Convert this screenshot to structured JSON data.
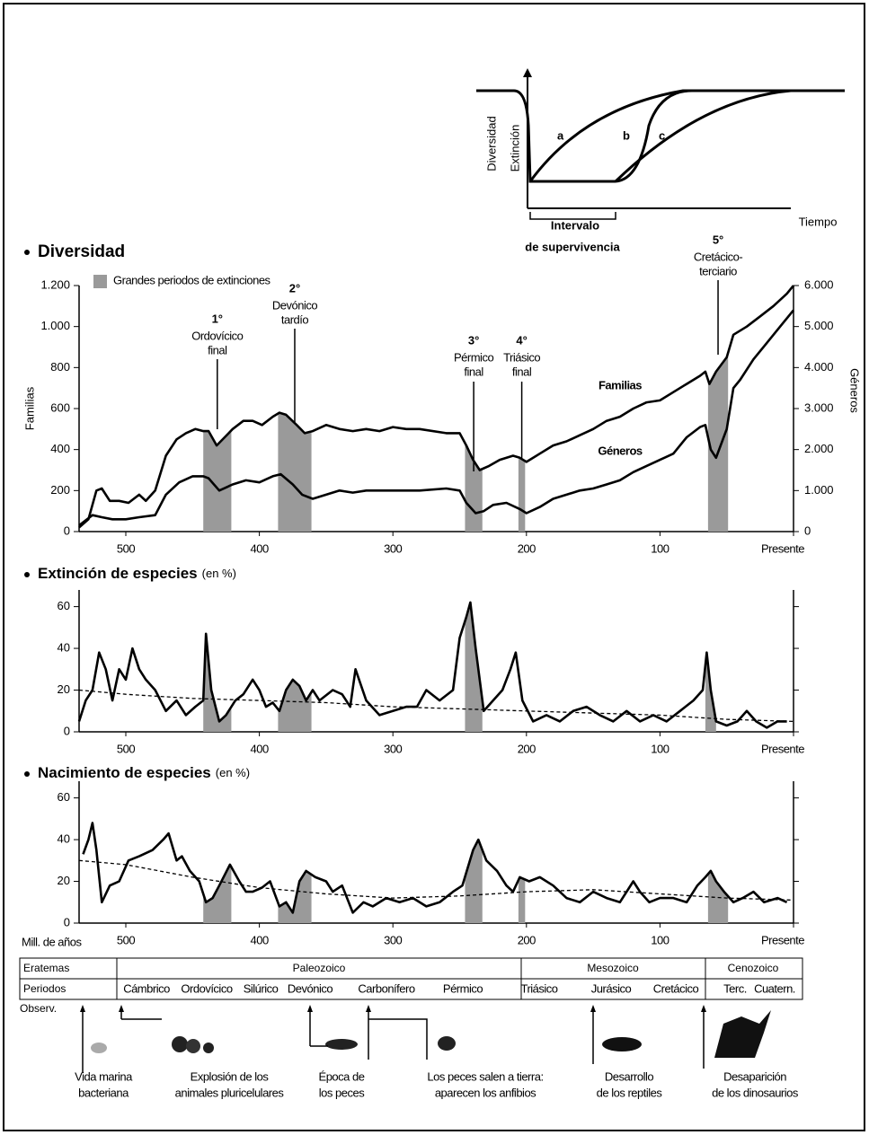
{
  "inset": {
    "y_label": "Diversidad",
    "extinction_label": "Extinción",
    "curve_labels": [
      "a",
      "b",
      "c"
    ],
    "x_label": "Tiempo",
    "interval_lines": [
      "Intervalo",
      "de supervivencia"
    ]
  },
  "chart_data": [
    {
      "type": "line",
      "title": "Diversidad",
      "y_label": "Familias",
      "y2_label": "Géneros",
      "legend_label": "Grandes periodos de extinciones",
      "shade_color": "#9a9a9a",
      "xlim": [
        535,
        0
      ],
      "xticks": [
        500,
        400,
        300,
        200,
        100,
        {
          "value": 0,
          "label": "Presente"
        }
      ],
      "ylim": [
        0,
        1200
      ],
      "yticks": [
        0,
        200,
        400,
        600,
        800,
        {
          "value": 1000,
          "label": "1.000"
        },
        {
          "value": 1200,
          "label": "1.200"
        }
      ],
      "y2lim": [
        0,
        6000
      ],
      "y2ticks": [
        0,
        {
          "value": 1000,
          "label": "1.000"
        },
        {
          "value": 2000,
          "label": "2.000"
        },
        {
          "value": 3000,
          "label": "3.000"
        },
        {
          "value": 4000,
          "label": "4.000"
        },
        {
          "value": 5000,
          "label": "5.000"
        },
        {
          "value": 6000,
          "label": "6.000"
        }
      ],
      "shaded": [
        [
          442,
          421
        ],
        [
          386,
          361
        ],
        [
          246,
          233
        ],
        [
          206,
          201
        ],
        [
          64,
          49
        ]
      ],
      "annotations": [
        {
          "rank": "1°",
          "lines": [
            "Ordovícico",
            "final"
          ]
        },
        {
          "rank": "2°",
          "lines": [
            "Devónico",
            "tardío"
          ]
        },
        {
          "rank": "3°",
          "lines": [
            "Pérmico",
            "final"
          ]
        },
        {
          "rank": "4°",
          "lines": [
            "Triásico",
            "final"
          ]
        },
        {
          "rank": "5°",
          "lines": [
            "Cretácico-",
            "terciario"
          ]
        }
      ],
      "series": [
        {
          "name": "Familias",
          "color": "#000000",
          "x": [
            535,
            528,
            522,
            518,
            512,
            505,
            498,
            490,
            485,
            478,
            470,
            462,
            455,
            448,
            442,
            438,
            432,
            426,
            420,
            412,
            405,
            398,
            390,
            385,
            380,
            372,
            366,
            360,
            350,
            340,
            330,
            320,
            310,
            300,
            290,
            280,
            260,
            250,
            245,
            240,
            235,
            228,
            220,
            210,
            205,
            200,
            190,
            180,
            170,
            160,
            150,
            140,
            130,
            120,
            110,
            100,
            90,
            80,
            70,
            66,
            63,
            58,
            50,
            45,
            35,
            25,
            15,
            5,
            0
          ],
          "values": [
            20,
            60,
            200,
            210,
            150,
            150,
            140,
            180,
            150,
            200,
            370,
            450,
            480,
            500,
            490,
            490,
            420,
            460,
            500,
            540,
            540,
            520,
            560,
            580,
            570,
            520,
            480,
            490,
            520,
            500,
            490,
            500,
            490,
            510,
            500,
            500,
            480,
            480,
            420,
            350,
            300,
            320,
            350,
            370,
            360,
            340,
            380,
            420,
            440,
            470,
            500,
            540,
            560,
            600,
            630,
            640,
            680,
            720,
            760,
            780,
            720,
            780,
            850,
            960,
            1000,
            1050,
            1100,
            1160,
            1200
          ]
        },
        {
          "name": "Géneros",
          "color": "#000000",
          "axis": "y2",
          "x": [
            535,
            525,
            518,
            510,
            500,
            490,
            478,
            470,
            460,
            450,
            442,
            438,
            430,
            420,
            410,
            400,
            390,
            384,
            375,
            368,
            360,
            350,
            340,
            330,
            320,
            300,
            280,
            260,
            250,
            245,
            238,
            232,
            225,
            215,
            205,
            200,
            190,
            180,
            170,
            160,
            150,
            140,
            130,
            120,
            110,
            100,
            90,
            80,
            70,
            66,
            62,
            58,
            50,
            45,
            40,
            30,
            20,
            10,
            0
          ],
          "values": [
            150,
            400,
            350,
            300,
            300,
            350,
            400,
            900,
            1200,
            1350,
            1350,
            1300,
            1000,
            1150,
            1250,
            1200,
            1350,
            1400,
            1150,
            900,
            800,
            900,
            1000,
            950,
            1000,
            1000,
            1000,
            1050,
            1000,
            700,
            450,
            500,
            650,
            700,
            550,
            450,
            600,
            800,
            900,
            1000,
            1050,
            1150,
            1250,
            1450,
            1600,
            1750,
            1900,
            2300,
            2550,
            2600,
            2000,
            1800,
            2500,
            3500,
            3700,
            4200,
            4600,
            5000,
            5400
          ]
        }
      ]
    },
    {
      "type": "line",
      "title": "Extinción de especies",
      "title_note": "(en %)",
      "shade_color": "#9a9a9a",
      "xlim": [
        535,
        0
      ],
      "xticks": [
        500,
        400,
        300,
        200,
        100,
        {
          "value": 0,
          "label": "Presente"
        }
      ],
      "ylim": [
        0,
        68
      ],
      "yticks": [
        0,
        20,
        40,
        60
      ],
      "shaded": [
        [
          442,
          421
        ],
        [
          386,
          361
        ],
        [
          246,
          233
        ],
        [
          66,
          58
        ]
      ],
      "series": [
        {
          "color": "#000000",
          "x": [
            535,
            530,
            525,
            520,
            515,
            510,
            505,
            500,
            495,
            490,
            485,
            478,
            470,
            462,
            455,
            448,
            442,
            440,
            436,
            430,
            425,
            418,
            412,
            405,
            400,
            395,
            390,
            385,
            380,
            375,
            370,
            365,
            360,
            355,
            345,
            338,
            332,
            328,
            320,
            310,
            300,
            290,
            282,
            275,
            265,
            255,
            250,
            245,
            242,
            238,
            232,
            225,
            218,
            212,
            208,
            203,
            195,
            185,
            175,
            165,
            155,
            145,
            135,
            125,
            115,
            105,
            95,
            85,
            75,
            68,
            65,
            62,
            58,
            50,
            42,
            35,
            28,
            20,
            12,
            5
          ],
          "values": [
            5,
            15,
            20,
            38,
            30,
            15,
            30,
            25,
            40,
            30,
            25,
            20,
            10,
            15,
            8,
            12,
            15,
            47,
            20,
            5,
            8,
            15,
            18,
            25,
            20,
            12,
            14,
            10,
            20,
            25,
            22,
            15,
            20,
            15,
            20,
            18,
            12,
            30,
            15,
            8,
            10,
            12,
            12,
            20,
            15,
            20,
            45,
            55,
            62,
            40,
            10,
            15,
            20,
            30,
            38,
            15,
            5,
            8,
            5,
            10,
            12,
            8,
            5,
            10,
            5,
            8,
            5,
            10,
            15,
            20,
            38,
            20,
            5,
            3,
            5,
            10,
            5,
            2,
            5,
            5
          ]
        },
        {
          "color": "#000000",
          "dashed": true,
          "x": [
            535,
            500,
            450,
            400,
            350,
            300,
            250,
            200,
            150,
            100,
            50,
            0
          ],
          "values": [
            20,
            18,
            16,
            15,
            14,
            12,
            11,
            10,
            9,
            8,
            6,
            5
          ]
        }
      ]
    },
    {
      "type": "line",
      "title": "Nacimiento de especies",
      "title_note": "(en %)",
      "x_label": "Mill. de años",
      "shade_color": "#9a9a9a",
      "xlim": [
        535,
        0
      ],
      "xticks": [
        500,
        400,
        300,
        200,
        100,
        {
          "value": 0,
          "label": "Presente"
        }
      ],
      "ylim": [
        0,
        68
      ],
      "yticks": [
        0,
        20,
        40,
        60
      ],
      "shaded": [
        [
          442,
          421
        ],
        [
          386,
          361
        ],
        [
          246,
          233
        ],
        [
          206,
          201
        ],
        [
          64,
          49
        ]
      ],
      "series": [
        {
          "color": "#000000",
          "x": [
            532,
            528,
            525,
            522,
            518,
            512,
            505,
            498,
            490,
            480,
            472,
            468,
            462,
            458,
            452,
            445,
            440,
            435,
            430,
            422,
            415,
            410,
            405,
            398,
            392,
            385,
            380,
            375,
            370,
            365,
            358,
            350,
            345,
            338,
            330,
            322,
            315,
            305,
            295,
            285,
            275,
            265,
            255,
            248,
            240,
            236,
            230,
            222,
            215,
            210,
            205,
            198,
            190,
            180,
            170,
            160,
            150,
            140,
            130,
            120,
            115,
            108,
            100,
            90,
            80,
            72,
            66,
            62,
            58,
            52,
            45,
            38,
            30,
            22,
            12,
            5
          ],
          "values": [
            33,
            40,
            48,
            35,
            10,
            18,
            20,
            30,
            32,
            35,
            40,
            43,
            30,
            32,
            25,
            20,
            10,
            12,
            18,
            28,
            20,
            15,
            15,
            17,
            20,
            8,
            10,
            5,
            20,
            25,
            22,
            20,
            15,
            18,
            5,
            10,
            8,
            12,
            10,
            12,
            8,
            10,
            15,
            18,
            35,
            40,
            30,
            25,
            18,
            15,
            22,
            20,
            22,
            18,
            12,
            10,
            15,
            12,
            10,
            20,
            15,
            10,
            12,
            12,
            10,
            18,
            22,
            25,
            20,
            15,
            10,
            12,
            15,
            10,
            12,
            10
          ]
        },
        {
          "color": "#000000",
          "dashed": true,
          "x": [
            535,
            500,
            450,
            400,
            350,
            300,
            250,
            200,
            150,
            100,
            50,
            0
          ],
          "values": [
            30,
            28,
            22,
            17,
            14,
            12,
            13,
            15,
            16,
            14,
            12,
            11
          ]
        }
      ]
    }
  ],
  "timeline": {
    "headers": [
      "Eratemas",
      "Periodos",
      "Observ."
    ],
    "eras": [
      "Paleozoico",
      "Mesozoico",
      "Cenozoico"
    ],
    "periods": [
      "Cámbrico",
      "Ordovícico",
      "Silúrico",
      "Devónico",
      "Carbonífero",
      "Pérmico",
      "Triásico",
      "Jurásico",
      "Cretácico",
      "Terc.",
      "Cuatern."
    ],
    "observations": [
      [
        "Vida marina",
        "bacteriana"
      ],
      [
        "Explosión de los",
        "animales pluricelulares"
      ],
      [
        "Época de",
        "los peces"
      ],
      [
        "Los peces salen a tierra:",
        "aparecen los anfibios"
      ],
      [
        "Desarrollo",
        "de los reptiles"
      ],
      [
        "Desaparición",
        "de los dinosaurios"
      ]
    ]
  }
}
